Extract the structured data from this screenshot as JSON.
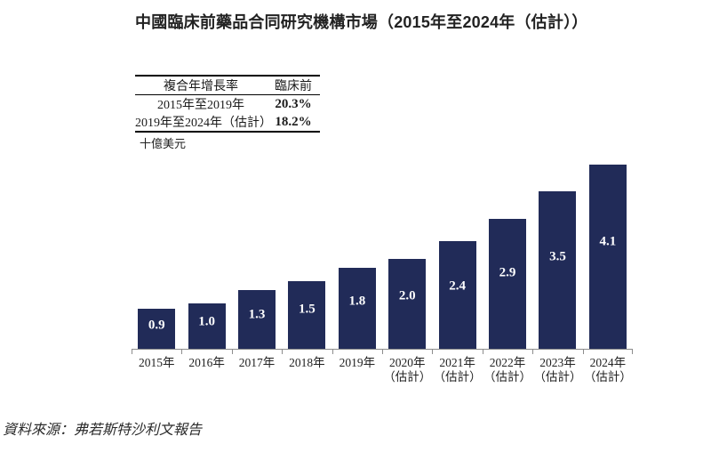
{
  "title": "中國臨床前藥品合同研究機構市場（2015年至2024年（估計））",
  "cagr_table": {
    "header": {
      "col1": "複合年增長率",
      "col2": "臨床前"
    },
    "rows": [
      {
        "period": "2015年至2019年",
        "value": "20.3%"
      },
      {
        "period": "2019年至2024年（估計）",
        "value": "18.2%"
      }
    ]
  },
  "unit_label": "十億美元",
  "chart_data": {
    "type": "bar",
    "title": "中國臨床前藥品合同研究機構市場（2015年至2024年（估計））",
    "xlabel": "",
    "ylabel": "十億美元",
    "categories": [
      "2015年",
      "2016年",
      "2017年",
      "2018年",
      "2019年",
      "2020年\n（估計）",
      "2021年\n（估計）",
      "2022年\n（估計）",
      "2023年\n（估計）",
      "2024年\n（估計）"
    ],
    "values": [
      0.9,
      1.0,
      1.3,
      1.5,
      1.8,
      2.0,
      2.4,
      2.9,
      3.5,
      4.1
    ],
    "value_labels": [
      "0.9",
      "1.0",
      "1.3",
      "1.5",
      "1.8",
      "2.0",
      "2.4",
      "2.9",
      "3.5",
      "4.1"
    ],
    "ylim": [
      0,
      4.2
    ],
    "grid": false,
    "y_axis_visible": false,
    "legend": null
  },
  "source": "資料來源：弗若斯特沙利文報告",
  "colors": {
    "bar": "#212B58",
    "axis": "#8C8C8C",
    "value_label": "#FFFFFF",
    "text": "#222222"
  }
}
